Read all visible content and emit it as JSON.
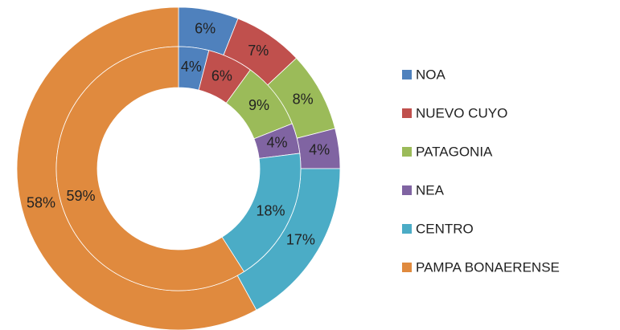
{
  "chart_data": {
    "type": "doughnut",
    "categories": [
      "NOA",
      "NUEVO CUYO",
      "PATAGONIA",
      "NEA",
      "CENTRO",
      "PAMPA BONAERENSE"
    ],
    "colors": [
      "#4f81bd",
      "#c0504d",
      "#9bbb59",
      "#8064a2",
      "#4bacc6",
      "#e08a3e"
    ],
    "series": [
      {
        "values": [
          6,
          7,
          8,
          4,
          17,
          58
        ],
        "value_labels": [
          "6%",
          "7%",
          "8%",
          "4%",
          "17%",
          "58%"
        ]
      },
      {
        "values": [
          4,
          6,
          9,
          4,
          18,
          59
        ],
        "value_labels": [
          "4%",
          "6%",
          "9%",
          "4%",
          "18%",
          "59%"
        ]
      }
    ]
  }
}
